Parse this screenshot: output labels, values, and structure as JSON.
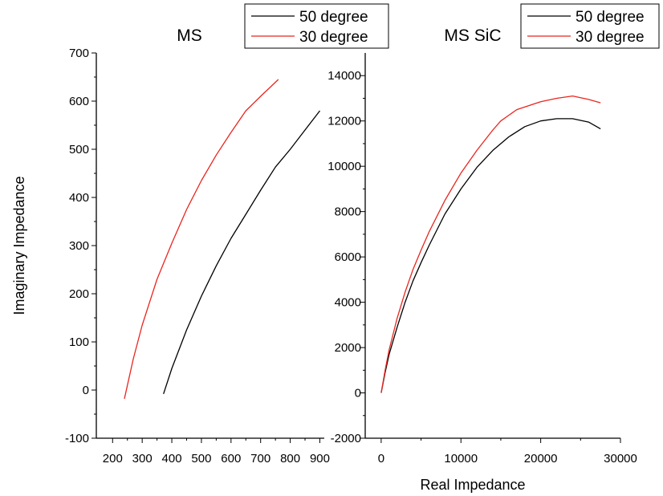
{
  "chart_data": [
    {
      "type": "line",
      "title": "MS",
      "xlabel": "",
      "ylabel": "Imaginary Impedance",
      "xlim": [
        145,
        915
      ],
      "ylim": [
        -100,
        700
      ],
      "xticks": [
        200,
        300,
        400,
        500,
        600,
        700,
        800,
        900
      ],
      "yticks": [
        -100,
        0,
        100,
        200,
        300,
        400,
        500,
        600,
        700
      ],
      "legend": "top-right",
      "series": [
        {
          "name": "50 degree",
          "color": "#000000",
          "x": [
            372,
            400,
            450,
            500,
            550,
            600,
            650,
            700,
            750,
            800,
            850,
            900
          ],
          "y": [
            -8,
            45,
            125,
            195,
            258,
            315,
            365,
            415,
            463,
            500,
            540,
            580
          ]
        },
        {
          "name": "30 degree",
          "color": "#e8261f",
          "x": [
            240,
            270,
            300,
            350,
            400,
            450,
            500,
            550,
            600,
            650,
            700,
            760
          ],
          "y": [
            -18,
            65,
            135,
            230,
            305,
            375,
            435,
            488,
            535,
            580,
            610,
            645
          ]
        }
      ]
    },
    {
      "type": "line",
      "title": "MS SiC",
      "xlabel": "Real Impedance",
      "ylabel": "",
      "xlim": [
        -2000,
        30000
      ],
      "ylim": [
        -2000,
        15000
      ],
      "xticks": [
        0,
        10000,
        20000,
        30000
      ],
      "yticks": [
        -2000,
        0,
        2000,
        4000,
        6000,
        8000,
        10000,
        12000,
        14000
      ],
      "legend": "top-right",
      "series": [
        {
          "name": "50 degree",
          "color": "#000000",
          "x": [
            0,
            500,
            1000,
            2000,
            3000,
            4000,
            5000,
            6000,
            8000,
            10000,
            12000,
            14000,
            16000,
            18000,
            20000,
            22000,
            24000,
            26000,
            27500
          ],
          "y": [
            0,
            900,
            1700,
            2900,
            4000,
            4950,
            5750,
            6500,
            7900,
            9000,
            9950,
            10700,
            11300,
            11750,
            12000,
            12100,
            12100,
            11950,
            11650
          ]
        },
        {
          "name": "30 degree",
          "color": "#e8261f",
          "x": [
            0,
            500,
            1000,
            2000,
            3000,
            4000,
            5000,
            6000,
            8000,
            10000,
            12000,
            14000,
            15000,
            17000,
            20000,
            22000,
            24000,
            26000,
            27500
          ],
          "y": [
            0,
            1000,
            1900,
            3300,
            4450,
            5450,
            6300,
            7100,
            8500,
            9700,
            10700,
            11600,
            12000,
            12500,
            12850,
            13000,
            13100,
            12950,
            12800
          ]
        }
      ]
    }
  ]
}
